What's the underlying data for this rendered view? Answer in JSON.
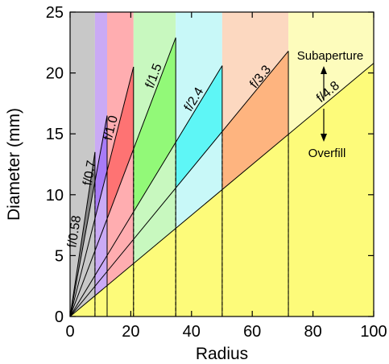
{
  "chart_data": {
    "type": "area",
    "xlabel": "Radius",
    "ylabel": "Diameter (mm)",
    "xlim": [
      0,
      100
    ],
    "ylim": [
      0,
      25
    ],
    "xticks": [
      0,
      20,
      40,
      60,
      80,
      100
    ],
    "yticks": [
      0,
      5,
      10,
      15,
      20,
      25
    ],
    "grid": false,
    "legend": "none",
    "series": [
      {
        "name": "f/0.58",
        "x_end": 8.2,
        "y_end": 13.5,
        "band_start": 0,
        "color": "#c8c8c8"
      },
      {
        "name": "f/0.7",
        "x_end": 12.2,
        "y_end": 16.5,
        "band_start": 8.2,
        "color": "#caaaf5"
      },
      {
        "name": "f/1.0",
        "x_end": 20.9,
        "y_end": 20.5,
        "band_start": 12.2,
        "color": "#ffadb0"
      },
      {
        "name": "f/1.5",
        "x_end": 34.8,
        "y_end": 22.9,
        "band_start": 20.9,
        "color": "#c8f8bf"
      },
      {
        "name": "f/2.4",
        "x_end": 50.1,
        "y_end": 20.6,
        "band_start": 34.8,
        "color": "#c8f8f8"
      },
      {
        "name": "f/3.3",
        "x_end": 71.9,
        "y_end": 21.8,
        "band_start": 50.1,
        "color": "#fcd8c0"
      },
      {
        "name": "f/4.8",
        "x_end": 100,
        "y_end": 20.8,
        "band_start": 71.9,
        "color": "#fdfcbc"
      }
    ],
    "fill_colors_below": [
      "#858585",
      "#a87bf7",
      "#fe7373",
      "#92f978",
      "#5ef6f6",
      "#feb47f",
      "#fdfb7a"
    ],
    "annotations": {
      "upper": "Subaperture",
      "lower": "Overfill"
    }
  }
}
